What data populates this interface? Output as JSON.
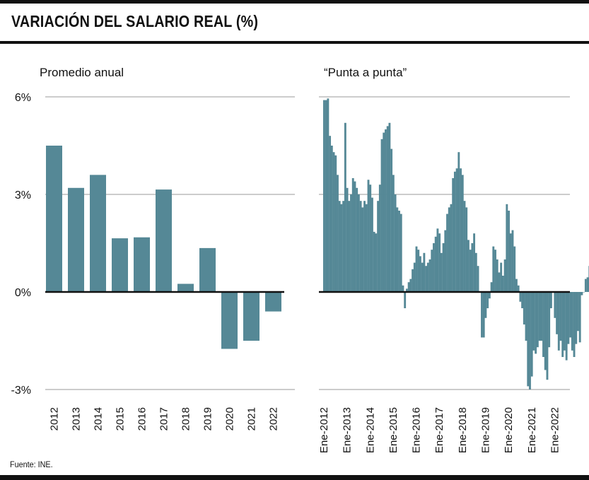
{
  "title": "VARIACIÓN DEL SALARIO REAL (%)",
  "source": "Fuente: INE.",
  "colors": {
    "bar": "#558896",
    "grid": "#9a9a9a",
    "axis": "#111111"
  },
  "chart_data": [
    {
      "type": "bar",
      "title": "Promedio anual",
      "y_ticks": [
        "6%",
        "3%",
        "0%",
        "-3%"
      ],
      "y_tick_values": [
        6,
        3,
        0,
        -3
      ],
      "ylim": [
        -3,
        6
      ],
      "categories": [
        "2012",
        "2013",
        "2014",
        "2015",
        "2016",
        "2017",
        "2018",
        "2019",
        "2020",
        "2021",
        "2022"
      ],
      "values": [
        4.5,
        3.2,
        3.6,
        1.65,
        1.68,
        3.15,
        0.25,
        1.35,
        -1.75,
        -1.5,
        -0.6
      ],
      "grid": true
    },
    {
      "type": "bar",
      "title": "“Punta a punta”",
      "ylim": [
        -3,
        6
      ],
      "y_tick_values": [
        6,
        3,
        0,
        -3
      ],
      "x_ticks": [
        "Ene-2012",
        "Ene-2013",
        "Ene-2014",
        "Ene-2015",
        "Ene-2016",
        "Ene-2017",
        "Ene-2018",
        "Ene-2019",
        "Ene-2020",
        "Ene-2021",
        "Ene-2022"
      ],
      "start": "Ene-2012",
      "frequency": "monthly",
      "values": [
        5.9,
        5.9,
        5.95,
        4.8,
        4.5,
        4.3,
        4.2,
        3.6,
        2.8,
        2.7,
        2.8,
        5.2,
        3.2,
        2.8,
        3.0,
        3.5,
        3.4,
        3.2,
        3.0,
        2.8,
        2.6,
        2.8,
        2.7,
        3.45,
        3.3,
        2.9,
        1.85,
        1.8,
        2.8,
        3.3,
        4.7,
        4.9,
        5.0,
        5.1,
        5.2,
        4.4,
        3.6,
        3.0,
        2.6,
        2.5,
        2.4,
        0.2,
        -0.5,
        0.1,
        0.3,
        0.4,
        0.7,
        0.9,
        1.4,
        1.3,
        1.1,
        0.9,
        1.2,
        0.8,
        0.9,
        1.0,
        1.3,
        1.5,
        1.7,
        1.95,
        1.8,
        1.2,
        1.5,
        1.9,
        2.4,
        2.6,
        2.7,
        3.5,
        3.7,
        3.8,
        4.3,
        3.8,
        3.6,
        2.8,
        2.6,
        1.6,
        1.3,
        1.5,
        1.8,
        1.2,
        0.8,
        0.0,
        -1.4,
        -1.4,
        -0.8,
        -0.5,
        -0.2,
        0.3,
        1.4,
        1.3,
        1.0,
        0.6,
        0.9,
        0.5,
        1.0,
        2.7,
        2.5,
        1.8,
        1.9,
        1.4,
        0.4,
        0.2,
        -0.3,
        -0.5,
        -1.0,
        -1.5,
        -2.9,
        -3.0,
        -2.6,
        -1.8,
        -1.9,
        -1.7,
        -1.5,
        -1.5,
        -2.0,
        -2.4,
        -2.7,
        -1.7,
        -0.5,
        0.0,
        -0.8,
        -1.3,
        -1.8,
        -1.5,
        -2.0,
        -1.8,
        -2.1,
        -1.6,
        -1.4,
        -1.8,
        -2.0,
        -1.6,
        -1.2,
        -1.55,
        -0.1,
        0.0,
        0.4,
        0.45,
        0.8,
        1.1,
        1.1,
        1.05
      ],
      "grid": true
    }
  ]
}
